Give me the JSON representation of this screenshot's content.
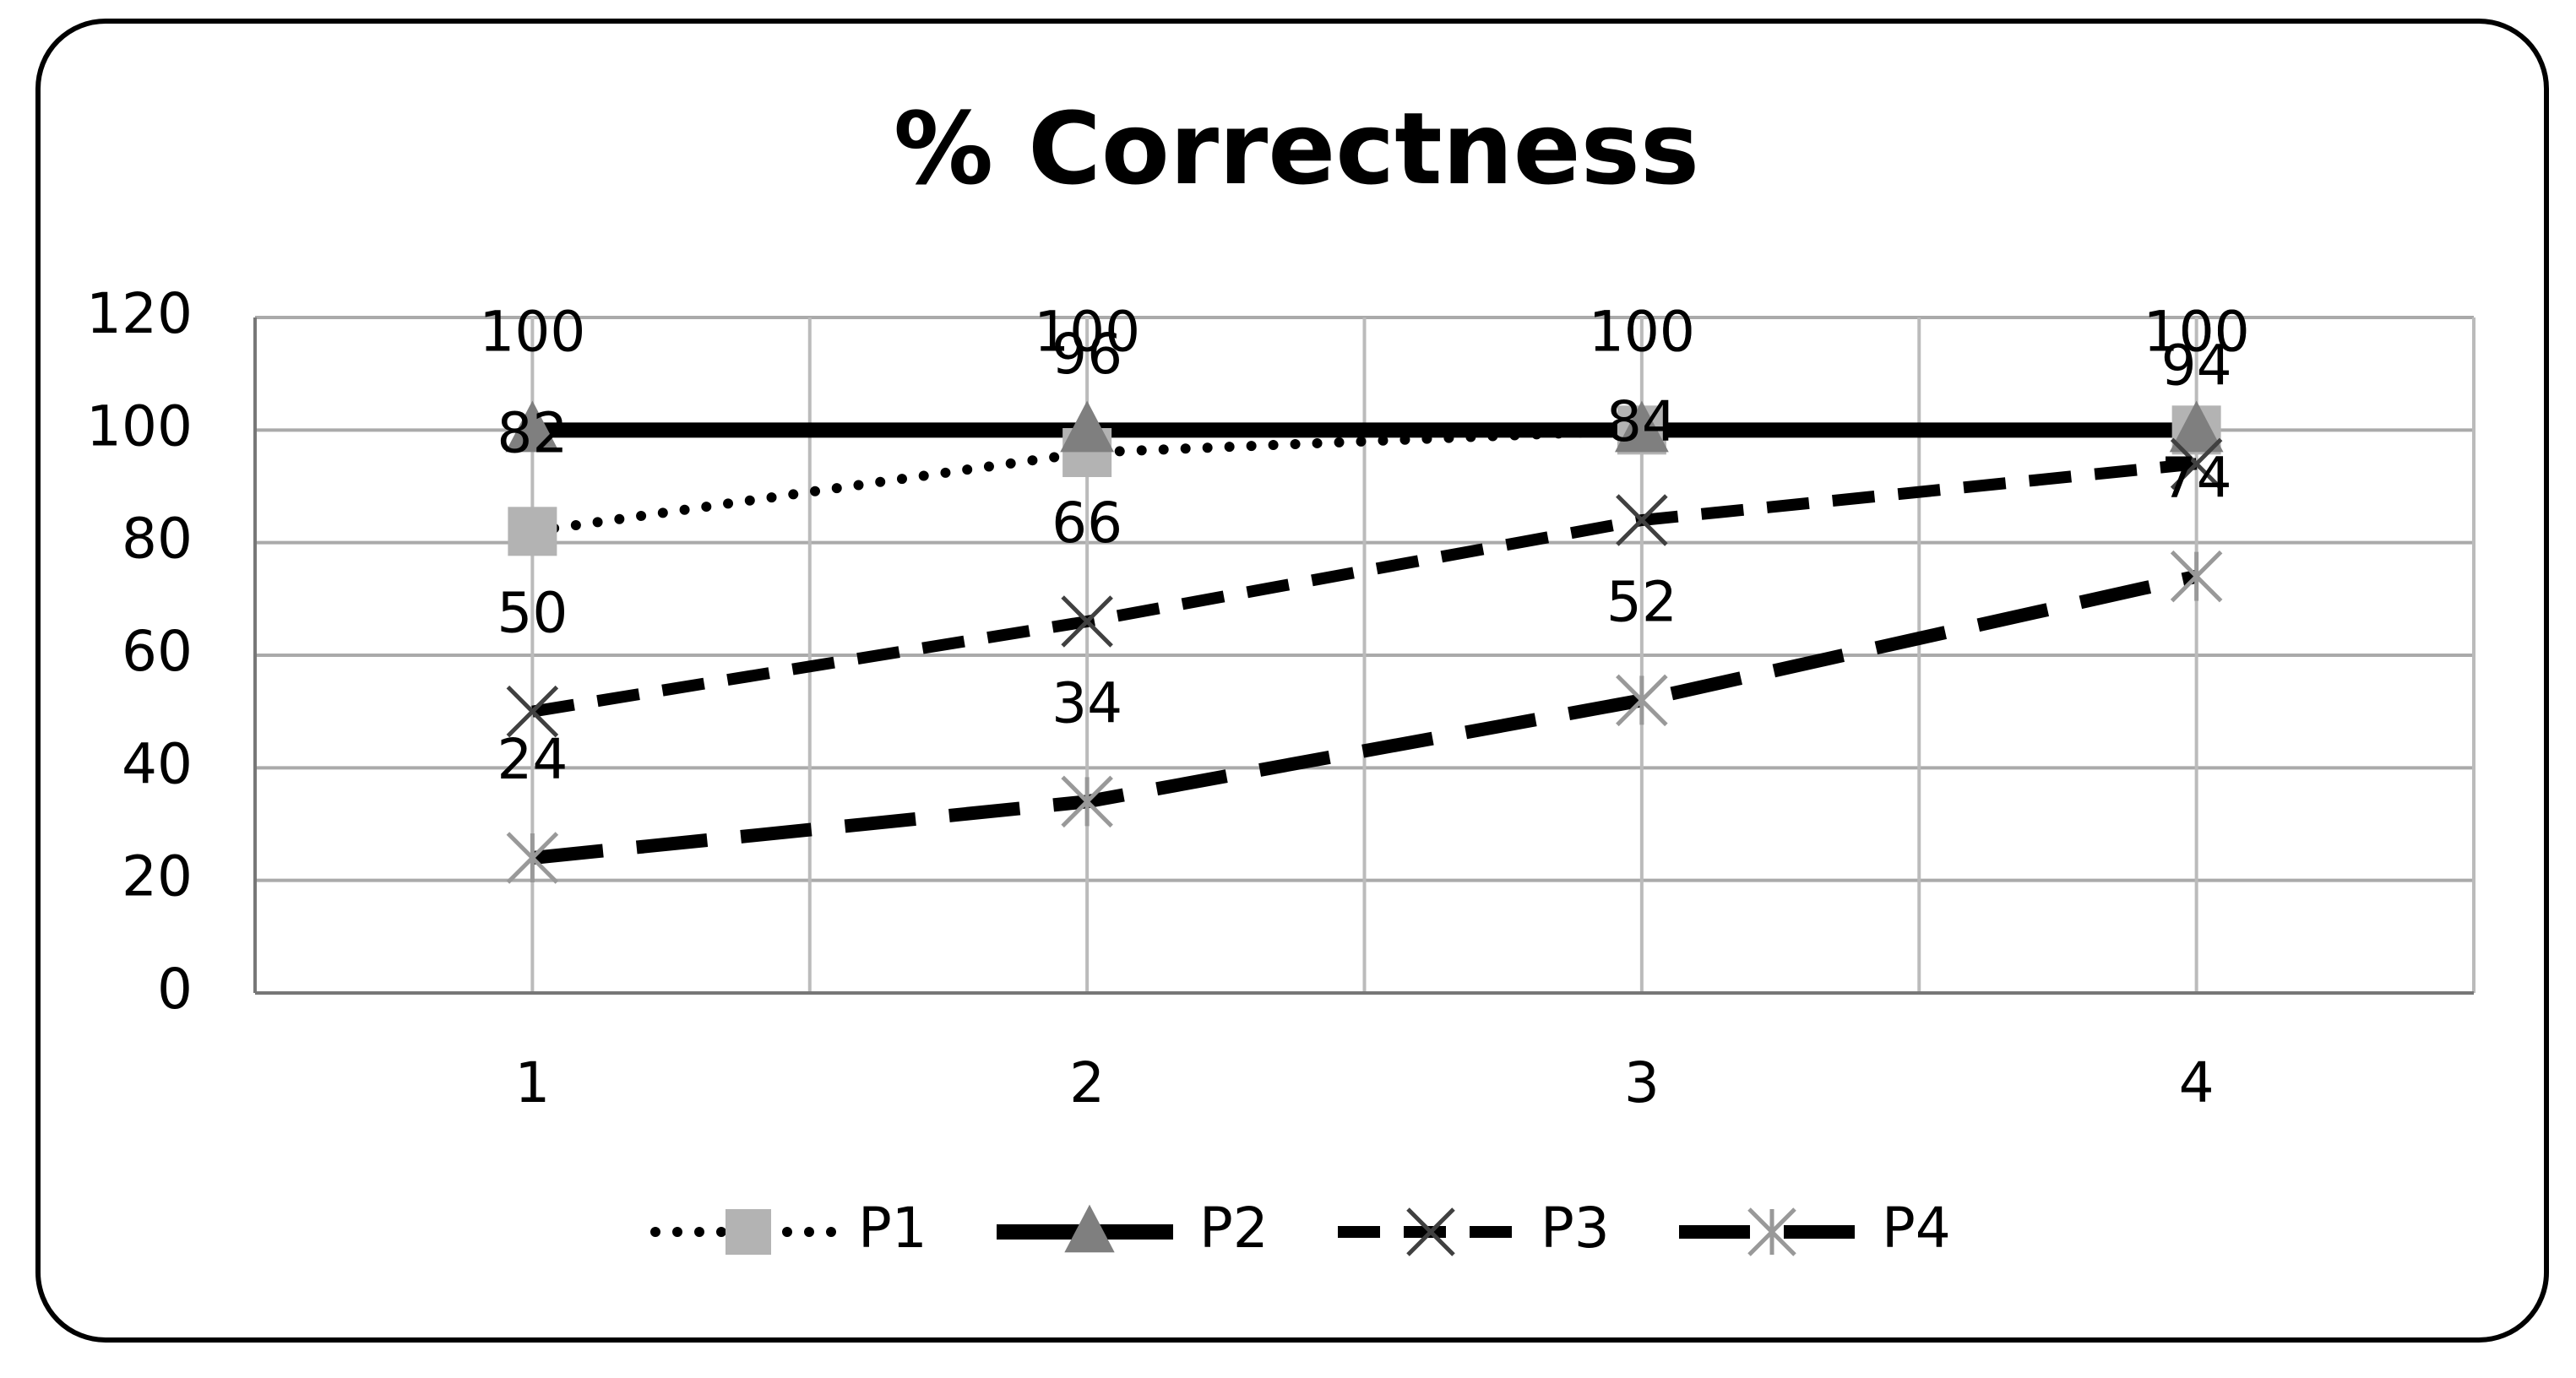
{
  "chart_data": {
    "type": "line",
    "title": "% Correctness",
    "categories": [
      "1",
      "2",
      "3",
      "4"
    ],
    "series": [
      {
        "name": "P1",
        "color": "#b3b3b3",
        "marker": "square",
        "line_style": "dotted",
        "values": [
          82,
          96,
          100,
          100
        ]
      },
      {
        "name": "P2",
        "color": "#7f7f7f",
        "marker": "triangle",
        "line_style": "solid",
        "values": [
          100,
          100,
          100,
          100
        ]
      },
      {
        "name": "P3",
        "color": "#404040",
        "marker": "x",
        "line_style": "dashed",
        "values": [
          50,
          66,
          84,
          94
        ]
      },
      {
        "name": "P4",
        "color": "#999999",
        "marker": "star",
        "line_style": "longdash",
        "values": [
          24,
          34,
          52,
          74
        ]
      }
    ],
    "ylim": [
      0,
      120
    ],
    "yticks": [
      0,
      20,
      40,
      60,
      80,
      100,
      120
    ],
    "grid": true,
    "legend": "bottom",
    "data_labels": true
  }
}
